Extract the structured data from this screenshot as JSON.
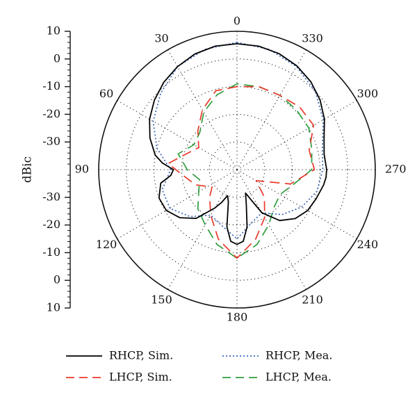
{
  "chart_data": {
    "type": "polar",
    "ylabel": "dBic",
    "r_range": [
      -40,
      10
    ],
    "r_axis_ticks": [
      "10",
      "0",
      "-10",
      "-20",
      "-30",
      "-30",
      "-20",
      "-10",
      "0",
      "10"
    ],
    "angle_labels": [
      {
        "deg": 0,
        "text": "0"
      },
      {
        "deg": 30,
        "text": "30"
      },
      {
        "deg": 60,
        "text": "60"
      },
      {
        "deg": 90,
        "text": "90"
      },
      {
        "deg": 120,
        "text": "120"
      },
      {
        "deg": 150,
        "text": "150"
      },
      {
        "deg": 180,
        "text": "180"
      },
      {
        "deg": 210,
        "text": "210"
      },
      {
        "deg": 240,
        "text": "240"
      },
      {
        "deg": 270,
        "text": "270"
      },
      {
        "deg": 300,
        "text": "300"
      },
      {
        "deg": 330,
        "text": "330"
      }
    ],
    "grid": true,
    "legend_position": "bottom",
    "series": [
      {
        "name": "RHCP, Sim.",
        "color": "#000000",
        "style": "solid",
        "points": [
          [
            0,
            5.5
          ],
          [
            10,
            5.3
          ],
          [
            20,
            4.5
          ],
          [
            30,
            3
          ],
          [
            40,
            1.2
          ],
          [
            50,
            -1
          ],
          [
            60,
            -3.5
          ],
          [
            70,
            -6.5
          ],
          [
            80,
            -10
          ],
          [
            85,
            -13
          ],
          [
            90,
            -17
          ],
          [
            95,
            -16
          ],
          [
            100,
            -12
          ],
          [
            110,
            -10
          ],
          [
            120,
            -10.5
          ],
          [
            130,
            -13
          ],
          [
            140,
            -17
          ],
          [
            150,
            -24
          ],
          [
            155,
            -27
          ],
          [
            160,
            -30
          ],
          [
            165,
            -28
          ],
          [
            170,
            -19
          ],
          [
            175,
            -14
          ],
          [
            180,
            -13
          ],
          [
            185,
            -14
          ],
          [
            190,
            -19
          ],
          [
            195,
            -27
          ],
          [
            200,
            -31
          ],
          [
            205,
            -28
          ],
          [
            210,
            -22
          ],
          [
            220,
            -16
          ],
          [
            230,
            -12.5
          ],
          [
            240,
            -10.5
          ],
          [
            250,
            -9.5
          ],
          [
            260,
            -8.2
          ],
          [
            265,
            -7.7
          ],
          [
            270,
            -7.6
          ],
          [
            280,
            -8
          ],
          [
            290,
            -6.5
          ],
          [
            300,
            -3.5
          ],
          [
            310,
            -0.8
          ],
          [
            320,
            1.5
          ],
          [
            330,
            3.3
          ],
          [
            340,
            4.6
          ],
          [
            350,
            5.3
          ],
          [
            360,
            5.5
          ]
        ]
      },
      {
        "name": "LHCP, Sim.",
        "color": "#e8392a",
        "style": "dashed",
        "points": [
          [
            0,
            -10
          ],
          [
            15,
            -10.5
          ],
          [
            30,
            -15
          ],
          [
            45,
            -20
          ],
          [
            60,
            -24
          ],
          [
            75,
            -20
          ],
          [
            85,
            -15
          ],
          [
            95,
            -20
          ],
          [
            110,
            -24
          ],
          [
            125,
            -29
          ],
          [
            135,
            -26
          ],
          [
            150,
            -21
          ],
          [
            165,
            -14
          ],
          [
            180,
            -8
          ],
          [
            195,
            -14
          ],
          [
            210,
            -20
          ],
          [
            225,
            -26
          ],
          [
            240,
            -32
          ],
          [
            255,
            -20
          ],
          [
            270,
            -12
          ],
          [
            285,
            -13
          ],
          [
            300,
            -8
          ],
          [
            315,
            -8
          ],
          [
            330,
            -9
          ],
          [
            345,
            -9
          ],
          [
            360,
            -10
          ]
        ]
      },
      {
        "name": "RHCP, Mea.",
        "color": "#3a64b8",
        "style": "dotted",
        "points": [
          [
            0,
            6
          ],
          [
            15,
            5
          ],
          [
            30,
            3
          ],
          [
            45,
            -1
          ],
          [
            60,
            -5
          ],
          [
            75,
            -10
          ],
          [
            90,
            -16
          ],
          [
            105,
            -12
          ],
          [
            120,
            -12
          ],
          [
            135,
            -16
          ],
          [
            150,
            -21
          ],
          [
            165,
            -19
          ],
          [
            180,
            -15
          ],
          [
            195,
            -20
          ],
          [
            210,
            -22
          ],
          [
            225,
            -17
          ],
          [
            240,
            -13
          ],
          [
            255,
            -10
          ],
          [
            270,
            -9
          ],
          [
            285,
            -8
          ],
          [
            300,
            -4
          ],
          [
            315,
            0
          ],
          [
            330,
            3
          ],
          [
            345,
            5
          ],
          [
            360,
            6
          ]
        ]
      },
      {
        "name": "LHCP, Mea.",
        "color": "#2e9e3e",
        "style": "dashed",
        "points": [
          [
            0,
            -9
          ],
          [
            15,
            -12
          ],
          [
            30,
            -16
          ],
          [
            45,
            -21
          ],
          [
            60,
            -22
          ],
          [
            75,
            -18
          ],
          [
            90,
            -22
          ],
          [
            105,
            -26
          ],
          [
            120,
            -24
          ],
          [
            135,
            -20
          ],
          [
            150,
            -17
          ],
          [
            165,
            -12
          ],
          [
            180,
            -8
          ],
          [
            195,
            -12
          ],
          [
            210,
            -17
          ],
          [
            225,
            -21
          ],
          [
            240,
            -22
          ],
          [
            255,
            -19
          ],
          [
            270,
            -13
          ],
          [
            285,
            -12
          ],
          [
            300,
            -10
          ],
          [
            315,
            -9.5
          ],
          [
            330,
            -9
          ],
          [
            345,
            -9
          ],
          [
            360,
            -9
          ]
        ]
      }
    ]
  }
}
